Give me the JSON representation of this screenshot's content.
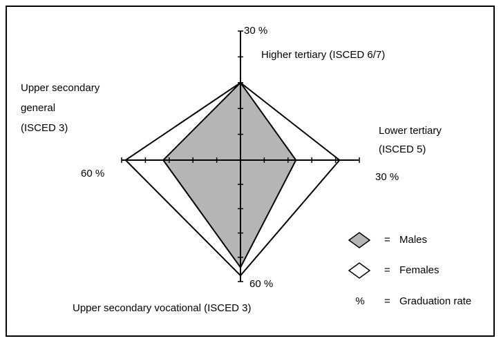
{
  "chart_data": {
    "type": "radar",
    "axes": [
      {
        "name": [
          "Higher tertiary (ISCED 6/7)"
        ],
        "lim": [
          0,
          30
        ],
        "ticks": [
          6,
          12,
          18,
          24,
          {
            "value": 30,
            "label": "30 %"
          }
        ]
      },
      {
        "name": [
          "Lower tertiary",
          "(ISCED 5)"
        ],
        "lim": [
          0,
          30
        ],
        "ticks": [
          6,
          12,
          18,
          24,
          {
            "value": 30,
            "label": "30 %"
          }
        ]
      },
      {
        "name": [
          "Upper secondary vocational (ISCED 3)"
        ],
        "lim": [
          0,
          60
        ],
        "ticks": [
          12,
          24,
          36,
          48,
          {
            "value": 60,
            "label": "60 %"
          }
        ]
      },
      {
        "name": [
          "Upper secondary",
          "general",
          "(ISCED 3)"
        ],
        "lim": [
          0,
          60
        ],
        "ticks": [
          12,
          24,
          36,
          48,
          {
            "value": 60,
            "label": "60 %"
          }
        ]
      }
    ],
    "series": [
      {
        "name": "Females",
        "color": "#ffffff",
        "values": [
          18,
          25,
          57,
          58
        ]
      },
      {
        "name": "Males",
        "color": "#b5b5b5",
        "values": [
          18,
          14,
          53,
          39
        ]
      }
    ],
    "legend_separator": "=",
    "rate_note": {
      "symbol": "%",
      "text": "Graduation rate"
    }
  }
}
